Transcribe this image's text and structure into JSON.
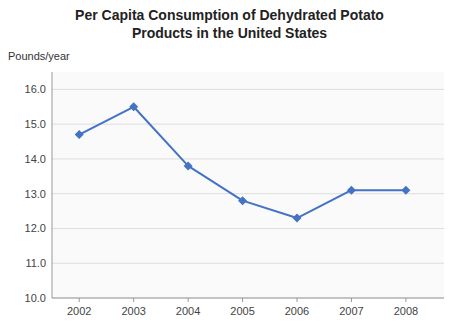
{
  "chart_data": {
    "type": "line",
    "title": "Per Capita Consumption of Dehydrated Potato\nProducts in the United States",
    "y_label": "Pounds/year",
    "x": [
      2002,
      2003,
      2004,
      2005,
      2006,
      2007,
      2008
    ],
    "values": [
      14.7,
      15.5,
      13.8,
      12.8,
      12.3,
      13.1,
      13.1
    ],
    "xlim": [
      2001.5,
      2008.7
    ],
    "xticks": [
      2002,
      2003,
      2004,
      2005,
      2006,
      2007,
      2008
    ],
    "ylim": [
      10.0,
      16.5
    ],
    "yticks": [
      {
        "value": 10.0,
        "label": "10.0"
      },
      {
        "value": 11.0,
        "label": "11.0"
      },
      {
        "value": 12.0,
        "label": "12.0"
      },
      {
        "value": 13.0,
        "label": "13.0"
      },
      {
        "value": 14.0,
        "label": "14.0"
      },
      {
        "value": 15.0,
        "label": "15.0"
      },
      {
        "value": 16.0,
        "label": "16.0"
      }
    ],
    "color": "#4472C4",
    "marker": "diamond",
    "grid": true
  }
}
